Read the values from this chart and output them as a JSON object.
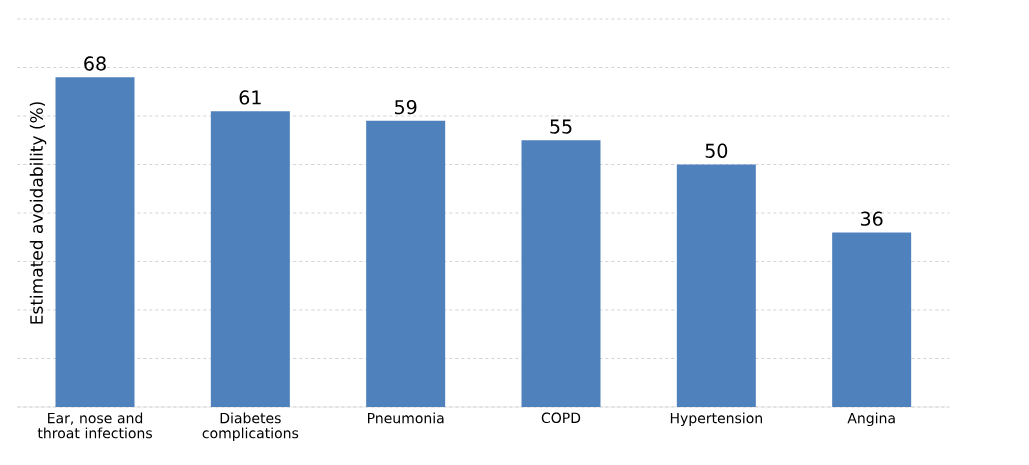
{
  "chart_data": {
    "type": "bar",
    "ylabel": "Estimated avoidability (%)",
    "categories": [
      "Ear, nose and throat infections",
      "Diabetes complications",
      "Pneumonia",
      "COPD",
      "Hypertension",
      "Angina"
    ],
    "values": [
      68,
      61,
      59,
      55,
      50,
      36
    ],
    "color": "#4f81bd",
    "ylim": [
      0,
      80
    ],
    "yticks": [
      {
        "value": 0,
        "label": null
      },
      {
        "value": 10,
        "label": null
      },
      {
        "value": 20,
        "label": null
      },
      {
        "value": 30,
        "label": null
      },
      {
        "value": 40,
        "label": null
      },
      {
        "value": 50,
        "label": null
      },
      {
        "value": 60,
        "label": null
      },
      {
        "value": 70,
        "label": null
      },
      {
        "value": 80,
        "label": null
      }
    ],
    "tick_labels": "x",
    "grid": "y",
    "data_labels": true
  }
}
